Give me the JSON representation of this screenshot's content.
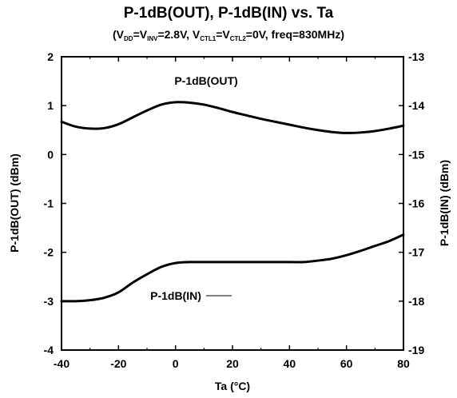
{
  "chart_data": {
    "type": "line",
    "title": "P-1dB(OUT), P-1dB(IN) vs. Ta",
    "subtitle_parts": [
      "(V",
      "DD",
      "=V",
      "INV",
      "=2.8V, V",
      "CTL1",
      "=V",
      "CTL2",
      "=0V, freq=830MHz)"
    ],
    "xlabel": "Ta (°C)",
    "ylabel_left": "P-1dB(OUT) (dBm)",
    "ylabel_right": "P-1dB(IN) (dBm)",
    "xlim": [
      -40,
      80
    ],
    "ylim_left": [
      -4,
      2
    ],
    "ylim_right": [
      -19,
      -13
    ],
    "x_ticks": [
      -40,
      -20,
      0,
      20,
      40,
      60,
      80
    ],
    "y_left_ticks": [
      2,
      1,
      0,
      -1,
      -2,
      -3,
      -4
    ],
    "y_right_ticks": [
      -13,
      -14,
      -15,
      -16,
      -17,
      -18,
      -19
    ],
    "grid": false,
    "series": [
      {
        "name": "P-1dB(OUT)",
        "axis": "left",
        "x": [
          -40,
          -35,
          -30,
          -25,
          -20,
          -15,
          -10,
          -5,
          0,
          5,
          10,
          15,
          20,
          25,
          30,
          35,
          40,
          45,
          50,
          55,
          60,
          65,
          70,
          75,
          80
        ],
        "y": [
          0.67,
          0.57,
          0.53,
          0.54,
          0.62,
          0.76,
          0.9,
          1.02,
          1.07,
          1.06,
          1.02,
          0.95,
          0.87,
          0.8,
          0.73,
          0.67,
          0.61,
          0.55,
          0.5,
          0.46,
          0.44,
          0.45,
          0.48,
          0.53,
          0.59
        ]
      },
      {
        "name": "P-1dB(IN)",
        "axis": "right",
        "x": [
          -40,
          -35,
          -30,
          -25,
          -20,
          -15,
          -10,
          -5,
          0,
          5,
          10,
          20,
          30,
          40,
          45,
          50,
          55,
          60,
          65,
          70,
          75,
          80
        ],
        "y": [
          -18.0,
          -18.0,
          -17.98,
          -17.93,
          -17.82,
          -17.62,
          -17.45,
          -17.3,
          -17.22,
          -17.2,
          -17.2,
          -17.2,
          -17.2,
          -17.2,
          -17.2,
          -17.17,
          -17.13,
          -17.06,
          -16.97,
          -16.87,
          -16.77,
          -16.64
        ]
      }
    ]
  }
}
